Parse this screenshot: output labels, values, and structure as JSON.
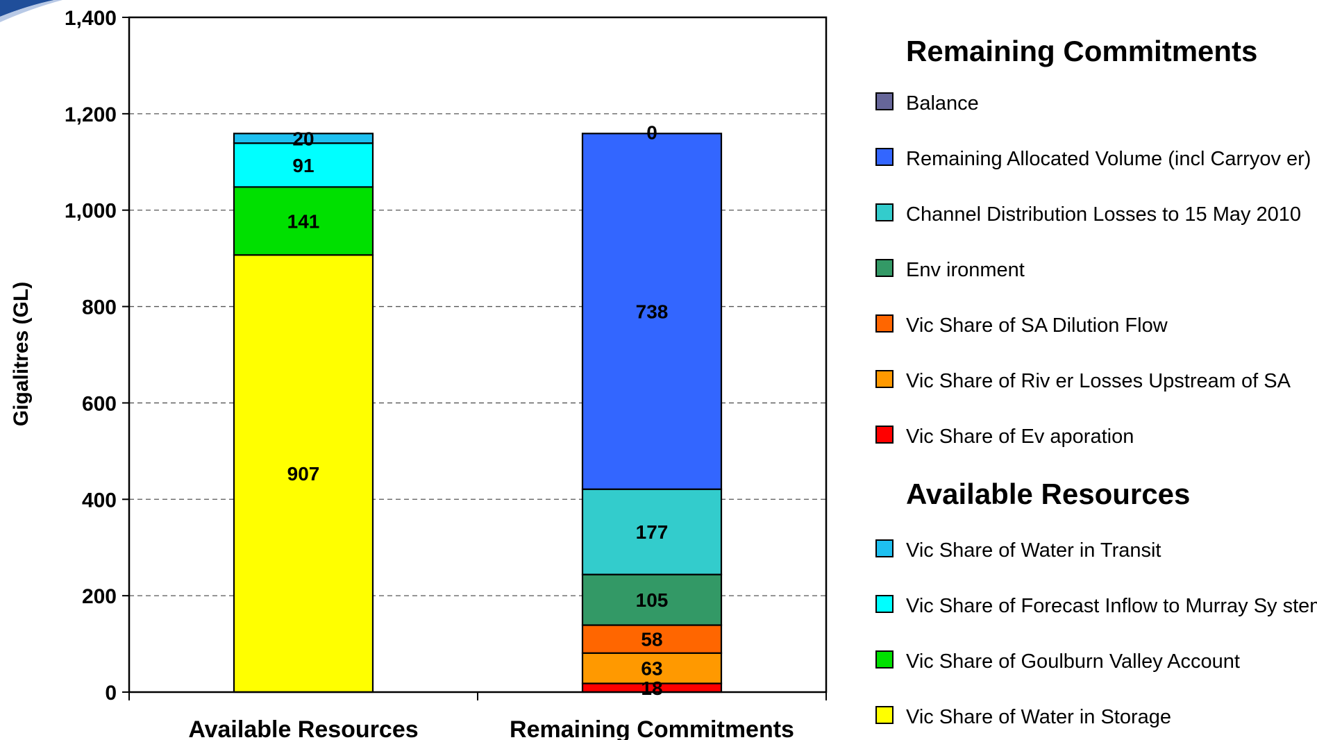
{
  "chart_data": {
    "type": "bar",
    "stacked": true,
    "title": "",
    "xlabel": "",
    "ylabel": "Gigalitres (GL)",
    "ylim": [
      0,
      1400
    ],
    "yticks": [
      0,
      200,
      400,
      600,
      800,
      1000,
      1200,
      1400
    ],
    "ytick_labels": [
      "0",
      "200",
      "400",
      "600",
      "800",
      "1,000",
      "1,200",
      "1,400"
    ],
    "grid": "horizontal dashed",
    "categories": [
      "Available Resources",
      "Remaining Commitments"
    ],
    "legend_position": "right",
    "legend_groups": [
      {
        "heading": "Remaining Commitments",
        "items": [
          "Balance",
          "Remaining Allocated Volume (incl Carryov er)",
          "Channel Distribution Losses to 15 May 2010",
          "Env ironment",
          "Vic Share of SA Dilution Flow",
          "Vic Share of Riv er Losses Upstream of SA",
          "Vic Share of Ev aporation"
        ]
      },
      {
        "heading": "Available Resources",
        "items": [
          "Vic Share of Water in Transit",
          "Vic Share of Forecast Inflow to Murray Sy stem",
          "Vic Share of Goulburn Valley Account",
          "Vic Share of Water in Storage"
        ]
      }
    ],
    "series": [
      {
        "name": "Vic Share of Water in Storage",
        "color": "#ffff00",
        "values": [
          907,
          0
        ],
        "labels": [
          "907",
          ""
        ]
      },
      {
        "name": "Vic Share of Goulburn Valley Account",
        "color": "#00e000",
        "values": [
          141,
          0
        ],
        "labels": [
          "141",
          ""
        ]
      },
      {
        "name": "Vic Share of Forecast Inflow to Murray Sy stem",
        "color": "#00ffff",
        "values": [
          91,
          0
        ],
        "labels": [
          "91",
          ""
        ]
      },
      {
        "name": "Vic Share of Water in Transit",
        "color": "#1ec0f0",
        "values": [
          20,
          0
        ],
        "labels": [
          "20",
          ""
        ]
      },
      {
        "name": "Vic Share of Ev aporation",
        "color": "#ff0000",
        "values": [
          0,
          18
        ],
        "labels": [
          "",
          "18"
        ]
      },
      {
        "name": "Vic Share of Riv er Losses Upstream of SA",
        "color": "#ff9900",
        "values": [
          0,
          63
        ],
        "labels": [
          "",
          "63"
        ]
      },
      {
        "name": "Vic Share of SA Dilution Flow",
        "color": "#ff6600",
        "values": [
          0,
          58
        ],
        "labels": [
          "",
          "58"
        ]
      },
      {
        "name": "Env ironment",
        "color": "#339966",
        "values": [
          0,
          105
        ],
        "labels": [
          "",
          "105"
        ]
      },
      {
        "name": "Channel Distribution Losses to 15 May 2010",
        "color": "#33cccc",
        "values": [
          0,
          177
        ],
        "labels": [
          "",
          "177"
        ]
      },
      {
        "name": "Remaining Allocated Volume (incl Carryov er)",
        "color": "#3366ff",
        "values": [
          0,
          738
        ],
        "labels": [
          "",
          "738"
        ]
      },
      {
        "name": "Balance",
        "color": "#666699",
        "values": [
          0,
          0
        ],
        "labels": [
          "",
          "0"
        ]
      }
    ]
  }
}
